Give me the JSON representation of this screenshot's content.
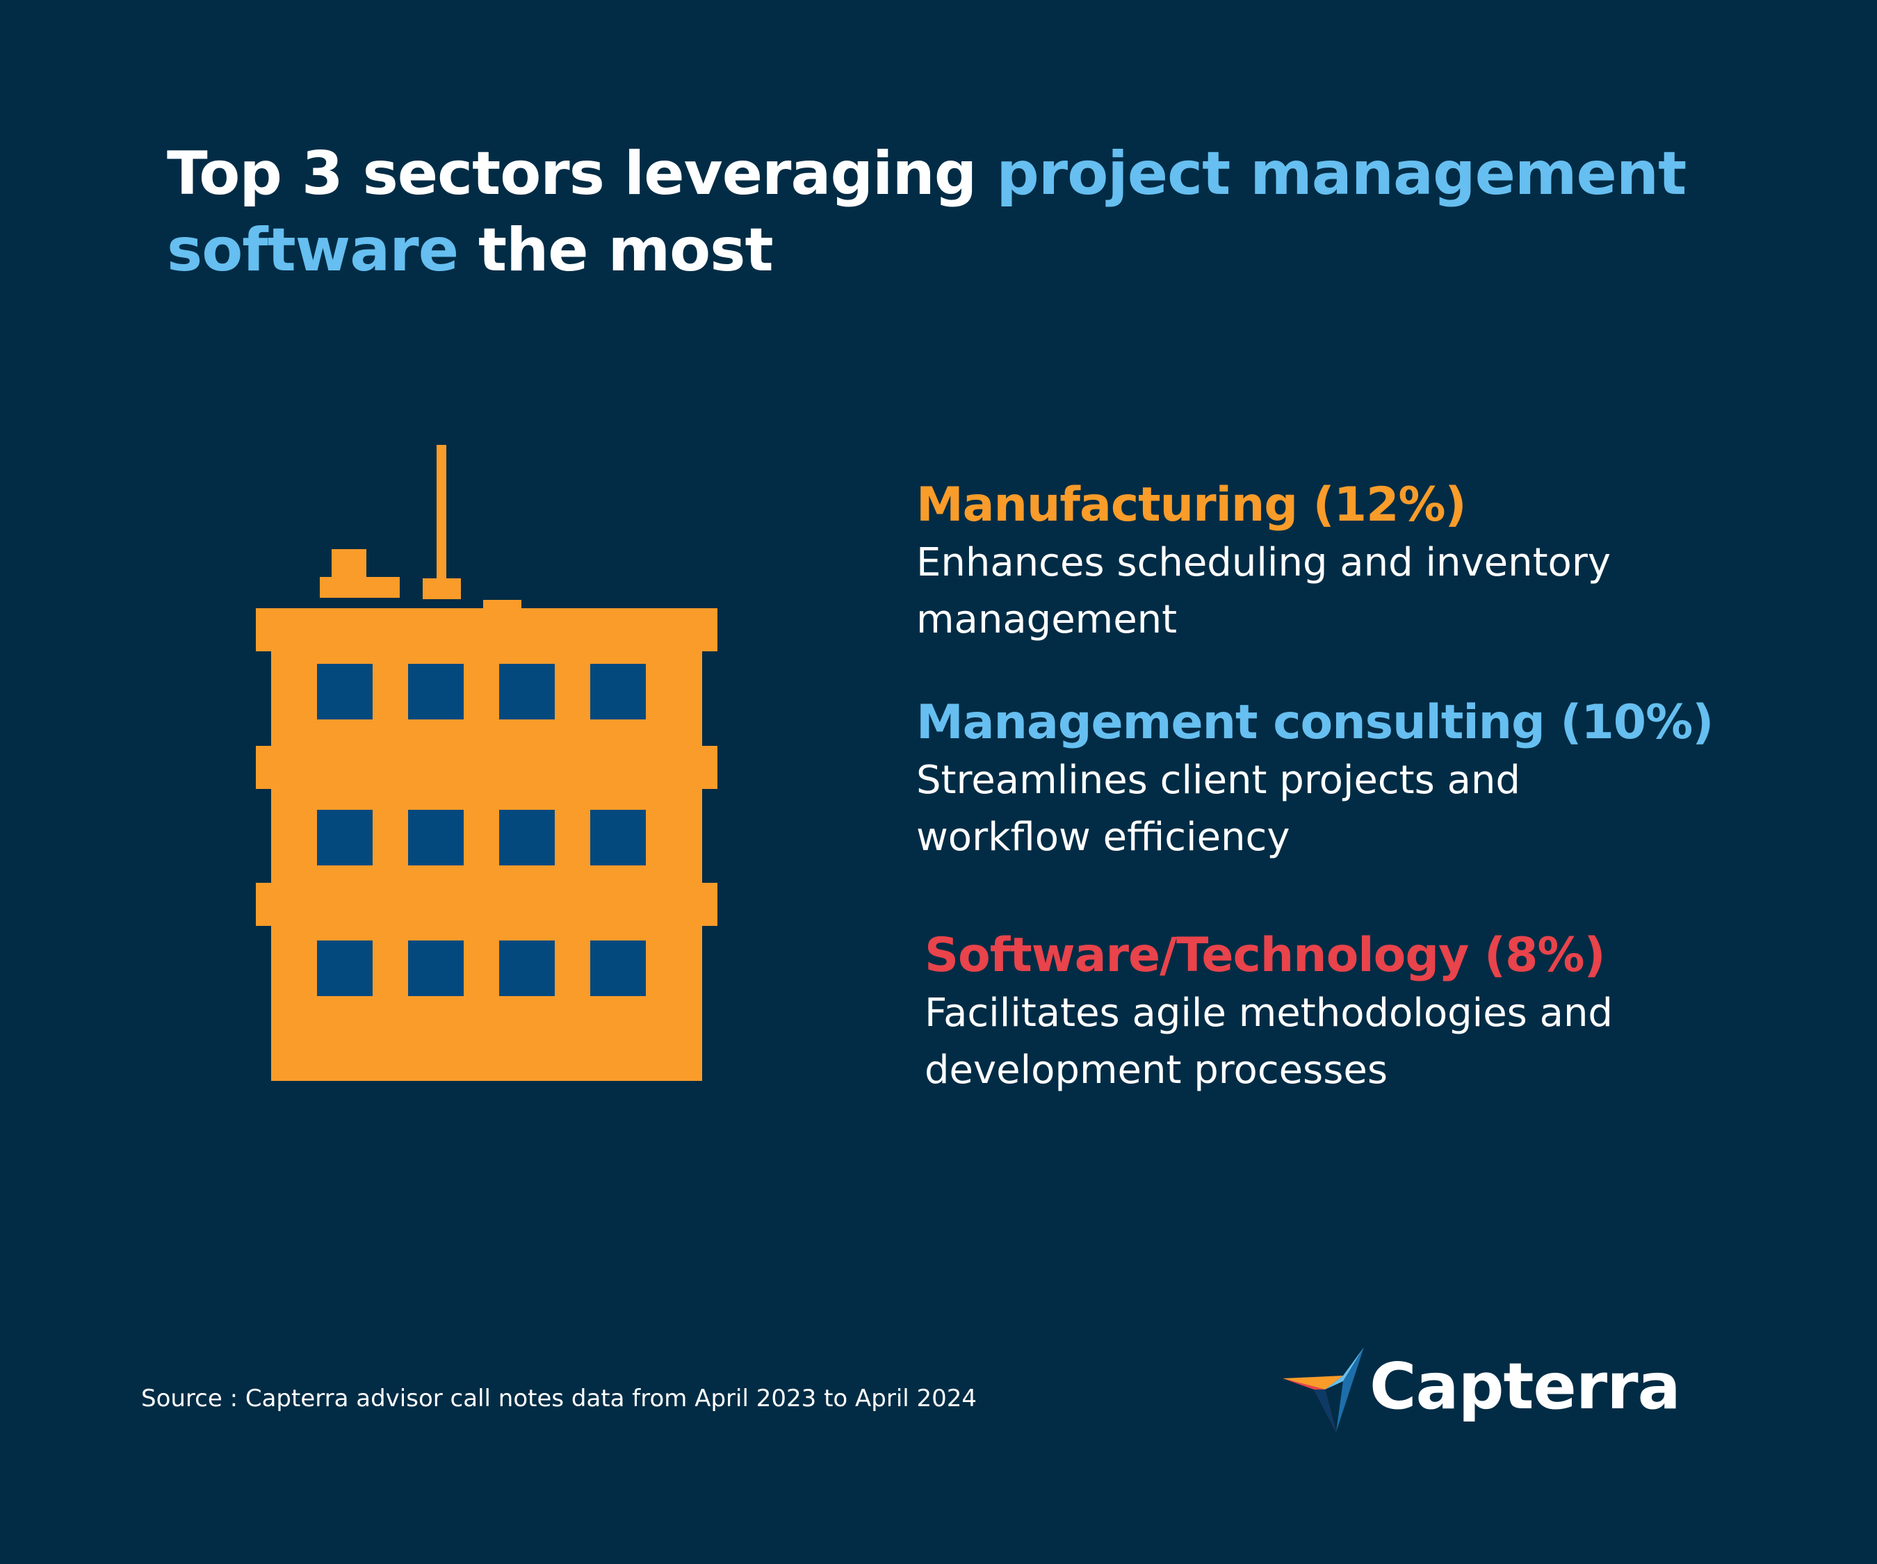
{
  "title": {
    "part1": "Top 3 sectors leveraging ",
    "part2_accent": "project management software",
    "part3": " the most"
  },
  "sectors": [
    {
      "title": "Manufacturing (12%)",
      "description": "Enhances scheduling and inventory management",
      "percent": 12,
      "color": "#f99c2a"
    },
    {
      "title": "Management consulting (10%)",
      "description": "Streamlines client projects and workflow efficiency",
      "percent": 10,
      "color": "#66bff0"
    },
    {
      "title": "Software/Technology (8%)",
      "description": "Facilitates agile methodologies and development processes",
      "percent": 8,
      "color": "#e9434b"
    }
  ],
  "source": "Source : Capterra advisor call notes data from April 2023 to April 2024",
  "logo": {
    "text": "Capterra",
    "icon": "capterra-arrow-icon"
  },
  "illustration": {
    "icon": "office-building-icon",
    "color": "#f99c2a",
    "window_color": "#04497e"
  },
  "colors": {
    "background": "#022c45",
    "accent": "#66bff0",
    "text": "#ffffff"
  }
}
